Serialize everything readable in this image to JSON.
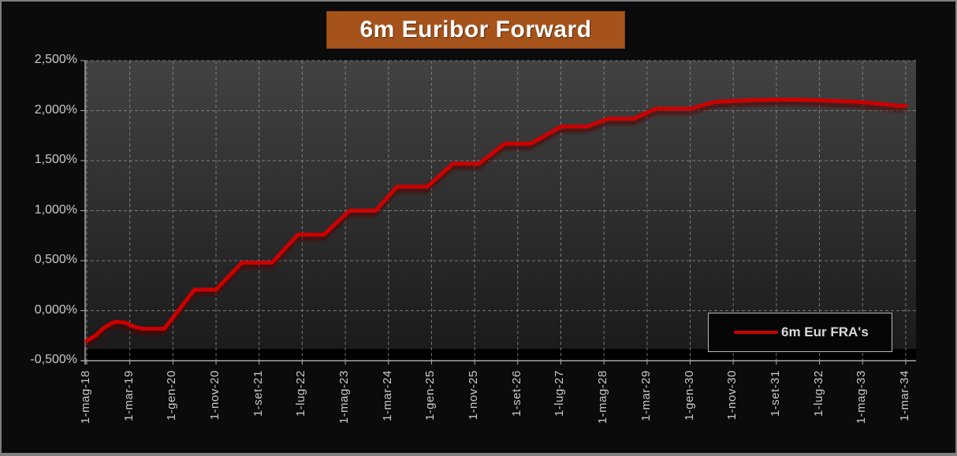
{
  "title": {
    "text": "6m Euribor Forward"
  },
  "legend": {
    "label": "6m Eur FRA's"
  },
  "colors": {
    "series_line": "#cc0000",
    "banner_bg": "#a5531b",
    "banner_text": "#ffffff",
    "background": "#0b0b0b",
    "frame_border": "#7f7f7f",
    "axis_text": "#c9c9c9",
    "axis_line": "#a8a8a8",
    "gridline": "#8f8f8f",
    "wall_top": "#424242",
    "wall_bottom": "#1b1b1b",
    "legend_border": "#b9b9b9",
    "legend_bg": "#060606",
    "legend_text": "#d9d9d9"
  },
  "chart_data": {
    "type": "line",
    "title": "6m Euribor Forward",
    "xlabel": "",
    "ylabel": "",
    "grid": "dashed",
    "legend_position": "inside-bottom-right",
    "y_axis": {
      "min": -0.5,
      "max": 2.5,
      "tick_step": 0.5,
      "tick_labels": [
        "2,500%",
        "2,000%",
        "1,500%",
        "1,000%",
        "0,500%",
        "0,000%",
        "-0,500%"
      ]
    },
    "x_axis": {
      "tick_labels": [
        "1-mag-18",
        "1-mar-19",
        "1-gen-20",
        "1-nov-20",
        "1-set-21",
        "1-lug-22",
        "1-mag-23",
        "1-mar-24",
        "1-gen-25",
        "1-nov-25",
        "1-set-26",
        "1-lug-27",
        "1-mag-28",
        "1-mar-29",
        "1-gen-30",
        "1-nov-30",
        "1-set-31",
        "1-lug-32",
        "1-mag-33",
        "1-mar-34"
      ],
      "x_unit": "months after 1-mag-18; one tick every 10 months"
    },
    "series": [
      {
        "name": "6m Eur FRA's",
        "color": "#cc0000",
        "points_month_value_pct": [
          [
            0,
            -0.3
          ],
          [
            2,
            -0.25
          ],
          [
            4,
            -0.17
          ],
          [
            6,
            -0.12
          ],
          [
            7,
            -0.11
          ],
          [
            9,
            -0.12
          ],
          [
            11,
            -0.16
          ],
          [
            13,
            -0.18
          ],
          [
            18,
            -0.18
          ],
          [
            25,
            0.21
          ],
          [
            30,
            0.21
          ],
          [
            36,
            0.48
          ],
          [
            43,
            0.48
          ],
          [
            49,
            0.76
          ],
          [
            55,
            0.76
          ],
          [
            61,
            1.0
          ],
          [
            67,
            1.0
          ],
          [
            72,
            1.24
          ],
          [
            79,
            1.24
          ],
          [
            85,
            1.47
          ],
          [
            91,
            1.47
          ],
          [
            97,
            1.67
          ],
          [
            103,
            1.67
          ],
          [
            110,
            1.84
          ],
          [
            116,
            1.84
          ],
          [
            121,
            1.92
          ],
          [
            127,
            1.92
          ],
          [
            132,
            2.02
          ],
          [
            140,
            2.02
          ],
          [
            146,
            2.09
          ],
          [
            152,
            2.1
          ],
          [
            158,
            2.11
          ],
          [
            166,
            2.11
          ],
          [
            172,
            2.1
          ],
          [
            178,
            2.09
          ],
          [
            184,
            2.07
          ],
          [
            188,
            2.05
          ],
          [
            190,
            2.05
          ]
        ]
      }
    ]
  }
}
